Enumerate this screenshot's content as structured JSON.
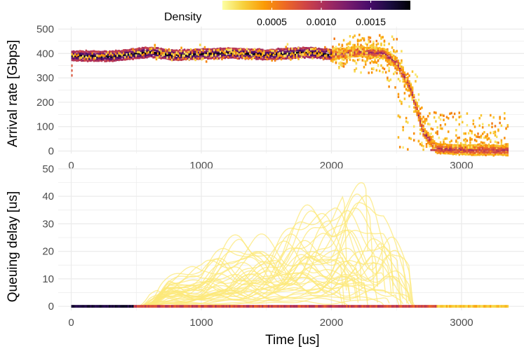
{
  "legend": {
    "title": "Density",
    "ticks": [
      {
        "value": 0.0005,
        "label": "0.0005"
      },
      {
        "value": 0.001,
        "label": "0.0010"
      },
      {
        "value": 0.0015,
        "label": "0.0015"
      }
    ],
    "range": [
      0,
      0.0019
    ],
    "colors": [
      "#fcffa4",
      "#f7d13d",
      "#fb9b06",
      "#ed6925",
      "#cf4446",
      "#a52c60",
      "#781c6d",
      "#4a0c6b",
      "#1b0c41",
      "#000004"
    ]
  },
  "chart_data": [
    {
      "type": "heatmap",
      "panel": "top",
      "xlabel": "",
      "ylabel": "Arrival rate [Gbps]",
      "xlim": [
        -100,
        3480
      ],
      "ylim": [
        -10,
        510
      ],
      "x_ticks": [
        {
          "value": 0,
          "label": "0"
        },
        {
          "value": 1000,
          "label": "1000"
        },
        {
          "value": 2000,
          "label": "2000"
        },
        {
          "value": 3000,
          "label": "3000"
        }
      ],
      "y_ticks": [
        {
          "value": 0,
          "label": "0"
        },
        {
          "value": 100,
          "label": "100"
        },
        {
          "value": 200,
          "label": "200"
        },
        {
          "value": 300,
          "label": "300"
        },
        {
          "value": 400,
          "label": "400"
        },
        {
          "value": 500,
          "label": "500"
        }
      ],
      "grid": true,
      "trend": [
        [
          0,
          390
        ],
        [
          300,
          388
        ],
        [
          600,
          405
        ],
        [
          800,
          392
        ],
        [
          1000,
          398
        ],
        [
          1200,
          402
        ],
        [
          1500,
          395
        ],
        [
          1800,
          405
        ],
        [
          2000,
          395
        ],
        [
          2200,
          408
        ],
        [
          2400,
          400
        ],
        [
          2500,
          360
        ],
        [
          2600,
          260
        ],
        [
          2700,
          80
        ],
        [
          2800,
          10
        ],
        [
          3000,
          5
        ],
        [
          3350,
          3
        ]
      ]
    },
    {
      "type": "line",
      "panel": "bottom",
      "xlabel": "Time [us]",
      "ylabel": "Queuing delay [us]",
      "xlim": [
        -100,
        3480
      ],
      "ylim": [
        -1.5,
        51
      ],
      "x_ticks": [
        {
          "value": 0,
          "label": "0"
        },
        {
          "value": 1000,
          "label": "1000"
        },
        {
          "value": 2000,
          "label": "2000"
        },
        {
          "value": 3000,
          "label": "3000"
        }
      ],
      "y_ticks": [
        {
          "value": 0,
          "label": "0"
        },
        {
          "value": 10,
          "label": "10"
        },
        {
          "value": 20,
          "label": "20"
        },
        {
          "value": 30,
          "label": "30"
        },
        {
          "value": 40,
          "label": "40"
        },
        {
          "value": 50,
          "label": "50"
        }
      ],
      "grid": true,
      "series_count": 40,
      "envelope": [
        [
          500,
          0
        ],
        [
          600,
          10
        ],
        [
          700,
          13
        ],
        [
          1000,
          14
        ],
        [
          1300,
          27
        ],
        [
          1500,
          29
        ],
        [
          1700,
          33
        ],
        [
          2000,
          37
        ],
        [
          2150,
          44
        ],
        [
          2300,
          48
        ],
        [
          2400,
          44
        ],
        [
          2500,
          30
        ],
        [
          2600,
          15
        ],
        [
          2630,
          0
        ]
      ]
    }
  ]
}
